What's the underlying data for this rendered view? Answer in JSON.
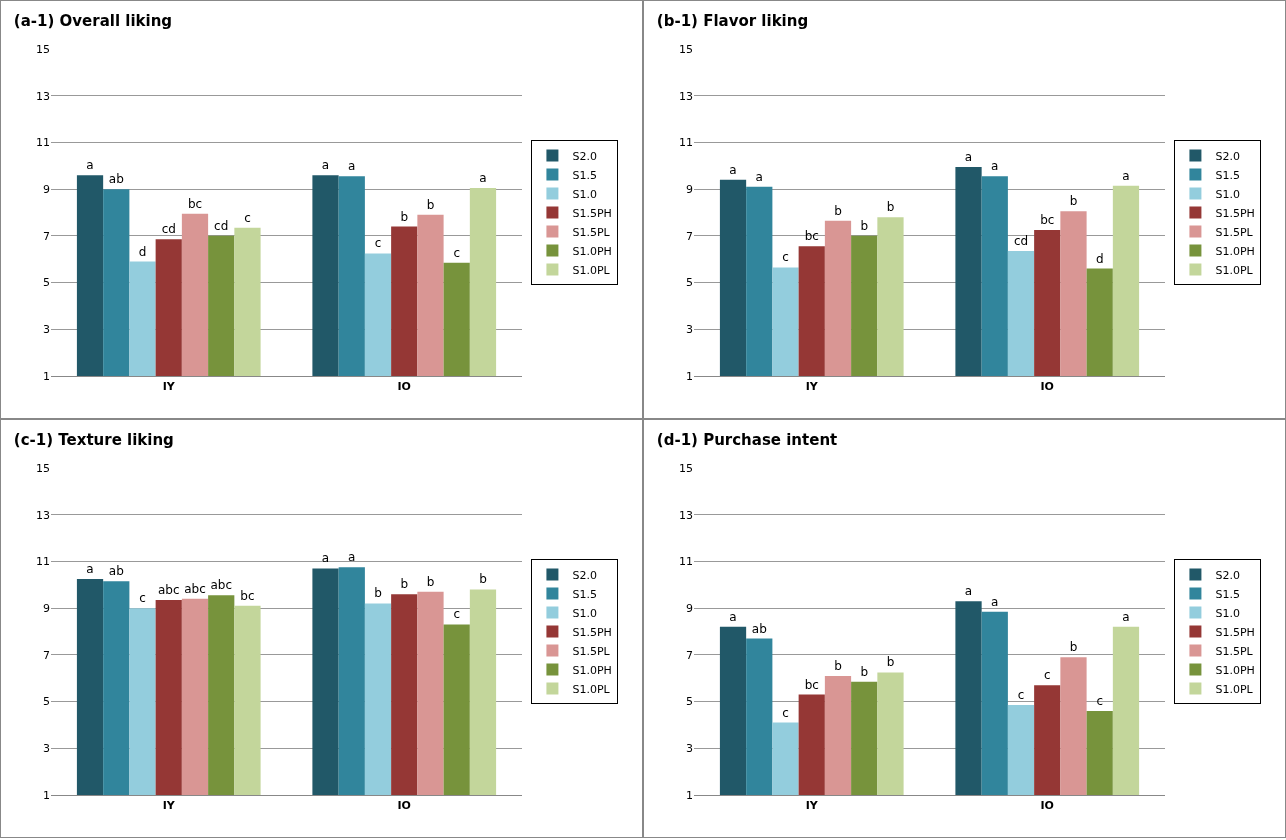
{
  "chart_data": [
    {
      "type": "bar",
      "title": "(a-1) Overall liking",
      "categories": [
        "IY",
        "IO"
      ],
      "ylim": [
        1,
        15
      ],
      "yticks": [
        1,
        3,
        5,
        7,
        9,
        11,
        13,
        15
      ],
      "grid": "y",
      "legend": "right",
      "series": [
        {
          "name": "S2.0",
          "color": "#215868",
          "values": [
            9.6,
            9.6
          ],
          "value_labels": [
            "a",
            "a"
          ]
        },
        {
          "name": "S1.5",
          "color": "#31859c",
          "values": [
            9.0,
            9.55
          ],
          "value_labels": [
            "ab",
            "a"
          ]
        },
        {
          "name": "S1.0",
          "color": "#93cddd",
          "values": [
            5.9,
            6.25
          ],
          "value_labels": [
            "d",
            "c"
          ]
        },
        {
          "name": "S1.5PH",
          "color": "#953735",
          "values": [
            6.85,
            7.4
          ],
          "value_labels": [
            "cd",
            "b"
          ]
        },
        {
          "name": "S1.5PL",
          "color": "#d99694",
          "values": [
            7.95,
            7.9
          ],
          "value_labels": [
            "bc",
            "b"
          ]
        },
        {
          "name": "S1.0PH",
          "color": "#77933c",
          "values": [
            7.0,
            5.85
          ],
          "value_labels": [
            "cd",
            "c"
          ]
        },
        {
          "name": "S1.0PL",
          "color": "#c3d69b",
          "values": [
            7.35,
            9.05
          ],
          "value_labels": [
            "c",
            "a"
          ]
        }
      ]
    },
    {
      "type": "bar",
      "title": "(b-1) Flavor liking",
      "categories": [
        "IY",
        "IO"
      ],
      "ylim": [
        1,
        15
      ],
      "yticks": [
        1,
        3,
        5,
        7,
        9,
        11,
        13,
        15
      ],
      "grid": "y",
      "legend": "right",
      "series": [
        {
          "name": "S2.0",
          "color": "#215868",
          "values": [
            9.4,
            9.95
          ],
          "value_labels": [
            "a",
            "a"
          ]
        },
        {
          "name": "S1.5",
          "color": "#31859c",
          "values": [
            9.1,
            9.55
          ],
          "value_labels": [
            "a",
            "a"
          ]
        },
        {
          "name": "S1.0",
          "color": "#93cddd",
          "values": [
            5.65,
            6.35
          ],
          "value_labels": [
            "c",
            "cd"
          ]
        },
        {
          "name": "S1.5PH",
          "color": "#953735",
          "values": [
            6.55,
            7.25
          ],
          "value_labels": [
            "bc",
            "bc"
          ]
        },
        {
          "name": "S1.5PL",
          "color": "#d99694",
          "values": [
            7.65,
            8.05
          ],
          "value_labels": [
            "b",
            "b"
          ]
        },
        {
          "name": "S1.0PH",
          "color": "#77933c",
          "values": [
            7.0,
            5.6
          ],
          "value_labels": [
            "b",
            "d"
          ]
        },
        {
          "name": "S1.0PL",
          "color": "#c3d69b",
          "values": [
            7.8,
            9.15
          ],
          "value_labels": [
            "b",
            "a"
          ]
        }
      ]
    },
    {
      "type": "bar",
      "title": "(c-1) Texture liking",
      "categories": [
        "IY",
        "IO"
      ],
      "ylim": [
        1,
        15
      ],
      "yticks": [
        1,
        3,
        5,
        7,
        9,
        11,
        13,
        15
      ],
      "grid": "y",
      "legend": "right",
      "series": [
        {
          "name": "S2.0",
          "color": "#215868",
          "values": [
            10.25,
            10.7
          ],
          "value_labels": [
            "a",
            "a"
          ]
        },
        {
          "name": "S1.5",
          "color": "#31859c",
          "values": [
            10.15,
            10.75
          ],
          "value_labels": [
            "ab",
            "a"
          ]
        },
        {
          "name": "S1.0",
          "color": "#93cddd",
          "values": [
            9.0,
            9.2
          ],
          "value_labels": [
            "c",
            "b"
          ]
        },
        {
          "name": "S1.5PH",
          "color": "#953735",
          "values": [
            9.35,
            9.6
          ],
          "value_labels": [
            "abc",
            "b"
          ]
        },
        {
          "name": "S1.5PL",
          "color": "#d99694",
          "values": [
            9.4,
            9.7
          ],
          "value_labels": [
            "abc",
            "b"
          ]
        },
        {
          "name": "S1.0PH",
          "color": "#77933c",
          "values": [
            9.55,
            8.3
          ],
          "value_labels": [
            "abc",
            "c"
          ]
        },
        {
          "name": "S1.0PL",
          "color": "#c3d69b",
          "values": [
            9.1,
            9.8
          ],
          "value_labels": [
            "bc",
            "b"
          ]
        }
      ]
    },
    {
      "type": "bar",
      "title": "(d-1) Purchase intent",
      "categories": [
        "IY",
        "IO"
      ],
      "ylim": [
        1,
        15
      ],
      "yticks": [
        1,
        3,
        5,
        7,
        9,
        11,
        13,
        15
      ],
      "grid": "y",
      "legend": "right",
      "series": [
        {
          "name": "S2.0",
          "color": "#215868",
          "values": [
            8.2,
            9.3
          ],
          "value_labels": [
            "a",
            "a"
          ]
        },
        {
          "name": "S1.5",
          "color": "#31859c",
          "values": [
            7.7,
            8.85
          ],
          "value_labels": [
            "ab",
            "a"
          ]
        },
        {
          "name": "S1.0",
          "color": "#93cddd",
          "values": [
            4.1,
            4.85
          ],
          "value_labels": [
            "c",
            "c"
          ]
        },
        {
          "name": "S1.5PH",
          "color": "#953735",
          "values": [
            5.3,
            5.7
          ],
          "value_labels": [
            "bc",
            "c"
          ]
        },
        {
          "name": "S1.5PL",
          "color": "#d99694",
          "values": [
            6.1,
            6.9
          ],
          "value_labels": [
            "b",
            "b"
          ]
        },
        {
          "name": "S1.0PH",
          "color": "#77933c",
          "values": [
            5.85,
            4.6
          ],
          "value_labels": [
            "b",
            "c"
          ]
        },
        {
          "name": "S1.0PL",
          "color": "#c3d69b",
          "values": [
            6.25,
            8.2
          ],
          "value_labels": [
            "b",
            "a"
          ]
        }
      ]
    }
  ]
}
